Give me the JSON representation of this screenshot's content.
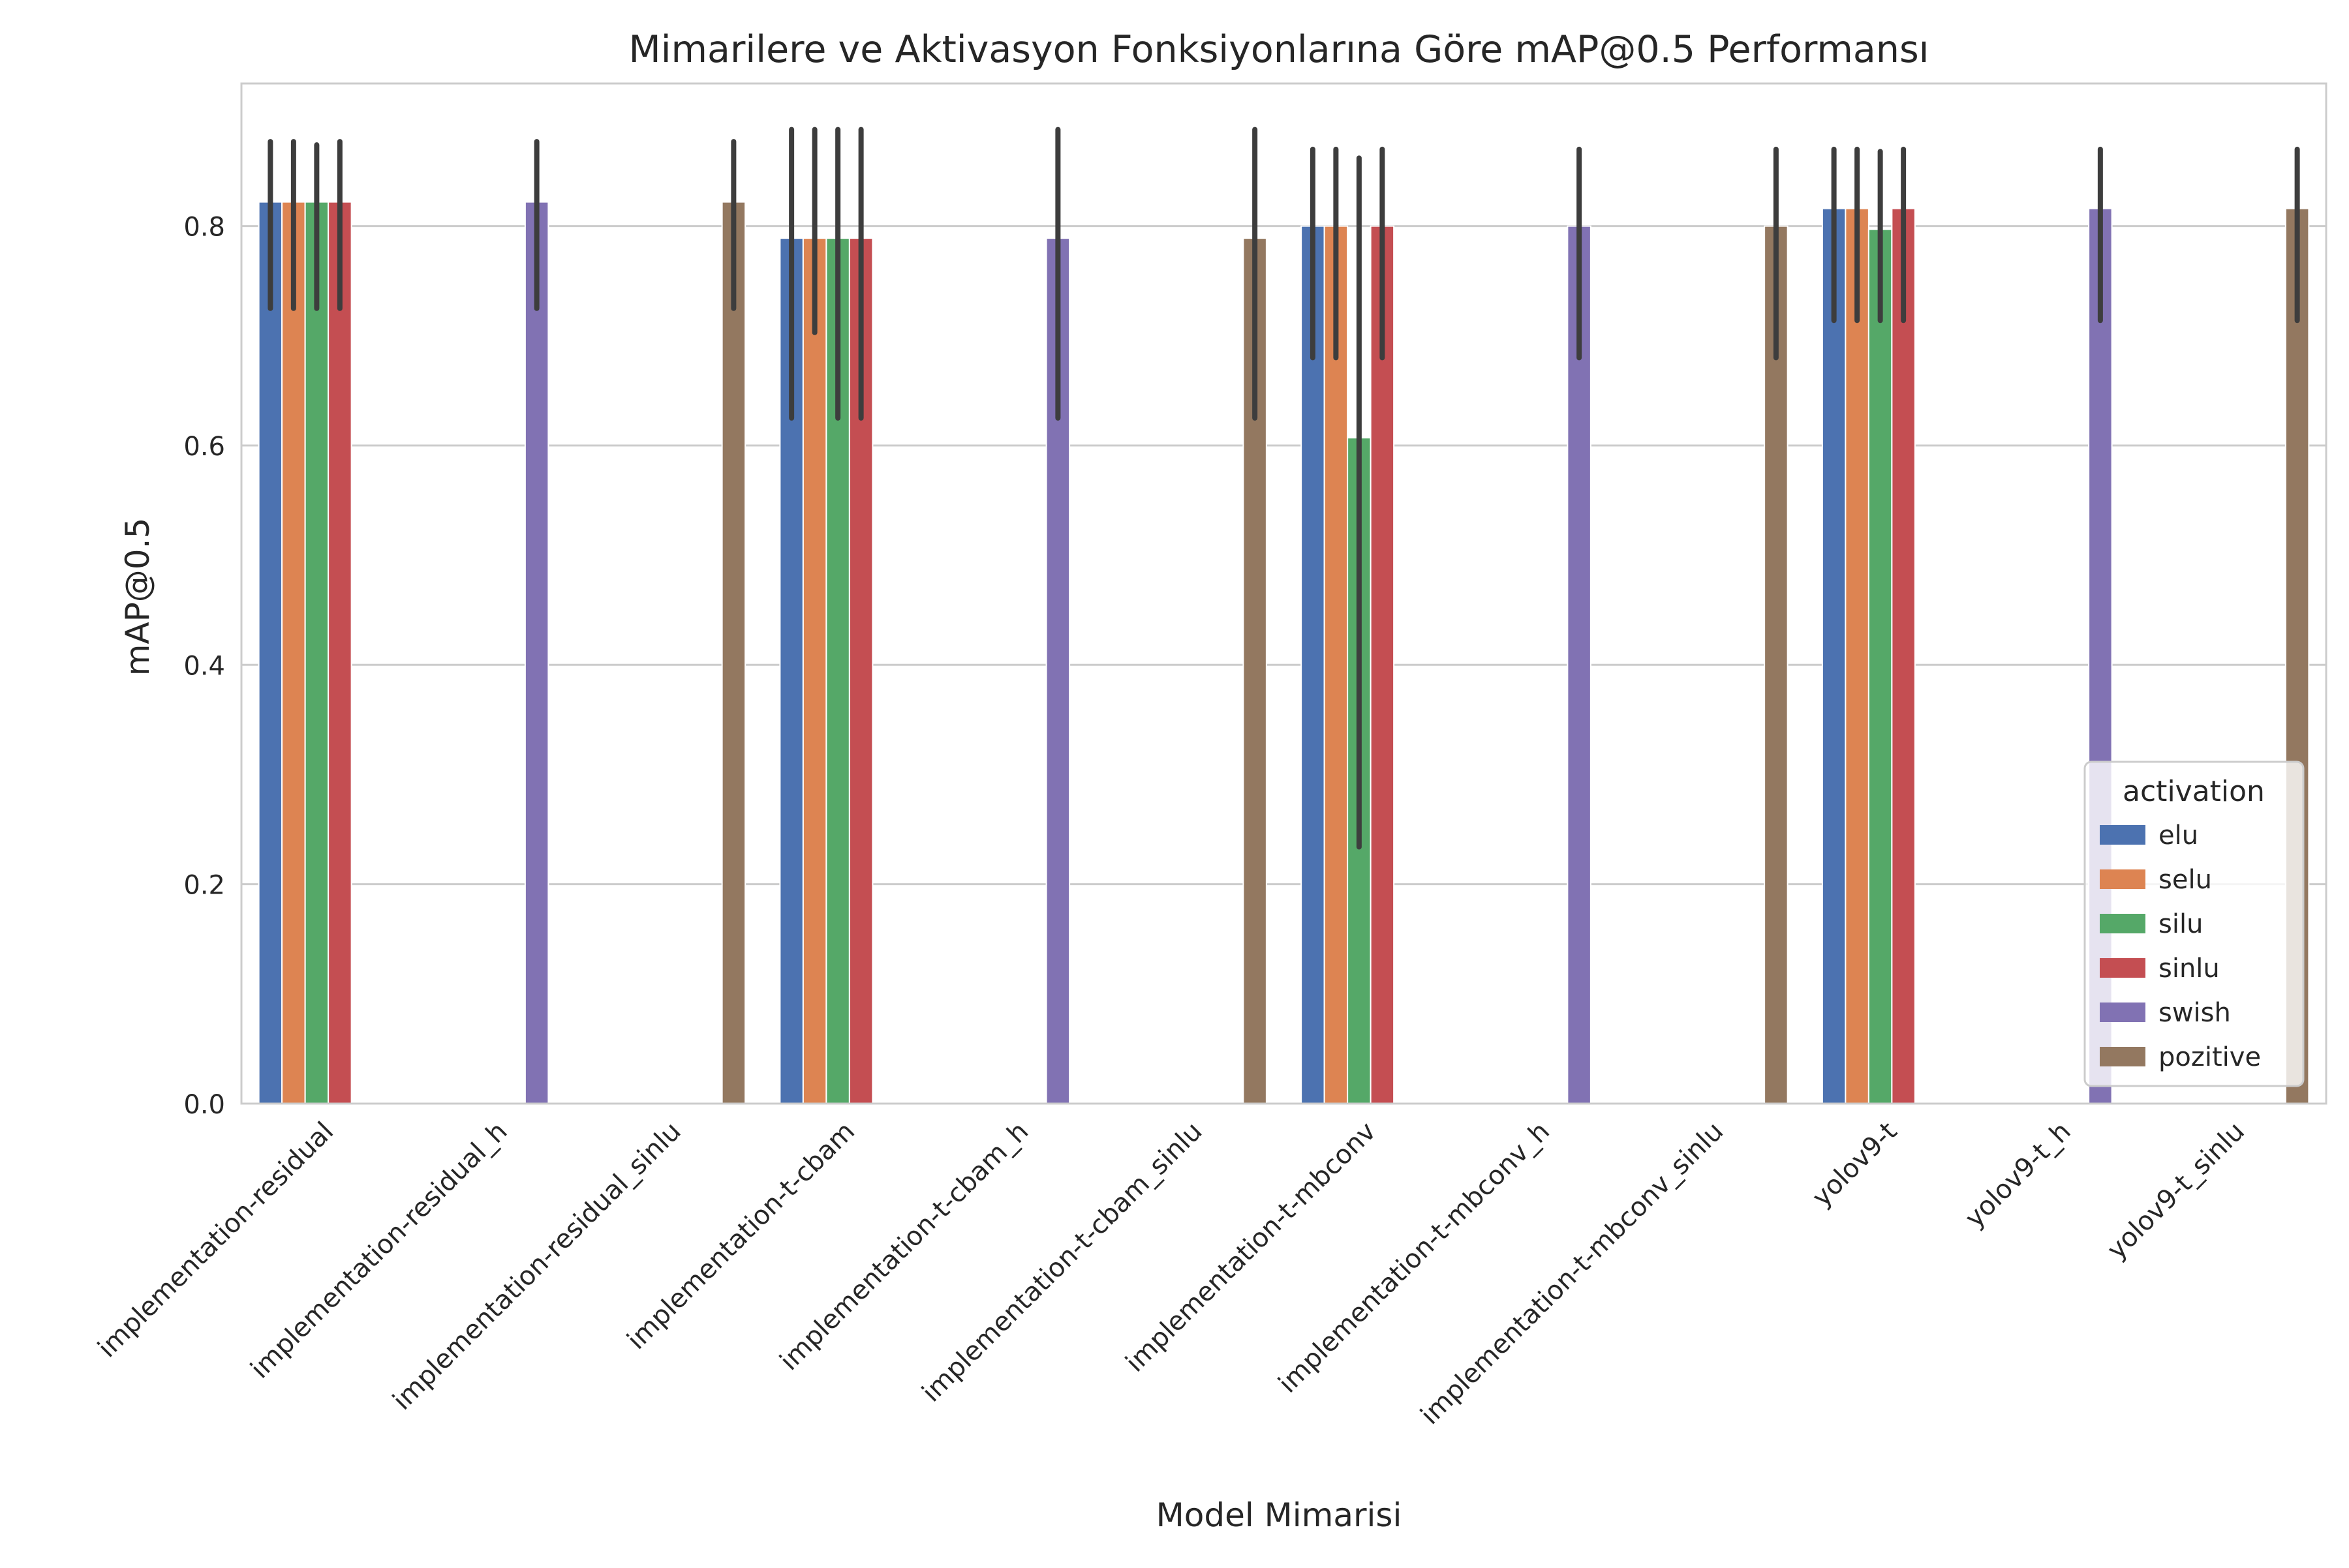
{
  "chart_data": {
    "type": "bar",
    "title": "Mimarilere ve Aktivasyon Fonksiyonlarına Göre mAP@0.5 Performansı",
    "xlabel": "Model Mimarisi",
    "ylabel": "mAP@0.5",
    "ylim": [
      0,
      0.93
    ],
    "yticks": [
      "0.0",
      "0.2",
      "0.4",
      "0.6",
      "0.8"
    ],
    "grid": true,
    "legend": {
      "title": "activation",
      "position": "lower-right"
    },
    "categories": [
      "implementation-residual",
      "implementation-residual_h",
      "implementation-residual_sinlu",
      "implementation-t-cbam",
      "implementation-t-cbam_h",
      "implementation-t-cbam_sinlu",
      "implementation-t-mbconv",
      "implementation-t-mbconv_h",
      "implementation-t-mbconv_sinlu",
      "yolov9-t",
      "yolov9-t_h",
      "yolov9-t_sinlu"
    ],
    "series": [
      {
        "name": "elu",
        "color": "#4c72b0",
        "values": [
          0.822,
          null,
          null,
          0.789,
          null,
          null,
          0.8,
          null,
          null,
          0.816,
          null,
          null
        ],
        "err_low": [
          0.725,
          null,
          null,
          0.625,
          null,
          null,
          0.68,
          null,
          null,
          0.714,
          null,
          null
        ],
        "err_high": [
          0.877,
          null,
          null,
          0.888,
          null,
          null,
          0.87,
          null,
          null,
          0.87,
          null,
          null
        ]
      },
      {
        "name": "selu",
        "color": "#dd8452",
        "values": [
          0.822,
          null,
          null,
          0.789,
          null,
          null,
          0.8,
          null,
          null,
          0.816,
          null,
          null
        ],
        "err_low": [
          0.725,
          null,
          null,
          0.703,
          null,
          null,
          0.68,
          null,
          null,
          0.714,
          null,
          null
        ],
        "err_high": [
          0.877,
          null,
          null,
          0.888,
          null,
          null,
          0.87,
          null,
          null,
          0.87,
          null,
          null
        ]
      },
      {
        "name": "silu",
        "color": "#55a868",
        "values": [
          0.822,
          null,
          null,
          0.789,
          null,
          null,
          0.607,
          null,
          null,
          0.797,
          null,
          null
        ],
        "err_low": [
          0.725,
          null,
          null,
          0.625,
          null,
          null,
          0.234,
          null,
          null,
          0.714,
          null,
          null
        ],
        "err_high": [
          0.874,
          null,
          null,
          0.888,
          null,
          null,
          0.862,
          null,
          null,
          0.868,
          null,
          null
        ]
      },
      {
        "name": "sinlu",
        "color": "#c44e52",
        "values": [
          0.822,
          null,
          null,
          0.789,
          null,
          null,
          0.8,
          null,
          null,
          0.816,
          null,
          null
        ],
        "err_low": [
          0.725,
          null,
          null,
          0.625,
          null,
          null,
          0.68,
          null,
          null,
          0.714,
          null,
          null
        ],
        "err_high": [
          0.877,
          null,
          null,
          0.888,
          null,
          null,
          0.87,
          null,
          null,
          0.87,
          null,
          null
        ]
      },
      {
        "name": "swish",
        "color": "#8172b3",
        "values": [
          null,
          0.822,
          null,
          null,
          0.789,
          null,
          null,
          0.8,
          null,
          null,
          0.816,
          null
        ],
        "err_low": [
          null,
          0.725,
          null,
          null,
          0.625,
          null,
          null,
          0.68,
          null,
          null,
          0.714,
          null
        ],
        "err_high": [
          null,
          0.877,
          null,
          null,
          0.888,
          null,
          null,
          0.87,
          null,
          null,
          0.87,
          null
        ]
      },
      {
        "name": "pozitive",
        "color": "#937860",
        "values": [
          null,
          null,
          0.822,
          null,
          null,
          0.789,
          null,
          null,
          0.8,
          null,
          null,
          0.816
        ],
        "err_low": [
          null,
          null,
          0.725,
          null,
          null,
          0.625,
          null,
          null,
          0.68,
          null,
          null,
          0.714
        ],
        "err_high": [
          null,
          null,
          0.877,
          null,
          null,
          0.888,
          null,
          null,
          0.87,
          null,
          null,
          0.87
        ]
      }
    ]
  }
}
